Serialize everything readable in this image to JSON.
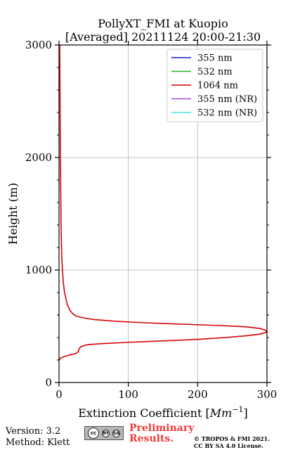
{
  "chart_data": {
    "type": "line",
    "title_line1": "PollyXT_FMI at Kuopio",
    "title_line2": "[Averaged] 20211124 20:00-21:30",
    "xlabel_text": "Extinction Coefficient [",
    "xlabel_unit": "Mm",
    "xlabel_exp": "−1",
    "xlabel_close": "]",
    "ylabel": "Height (m)",
    "xlim": [
      0,
      300
    ],
    "ylim": [
      0,
      3000
    ],
    "xticks": [
      0,
      100,
      200,
      300
    ],
    "yticks": [
      0,
      1000,
      2000,
      3000
    ],
    "grid": true,
    "legend_position": "top-right",
    "series": [
      {
        "name": "355 nm",
        "color": "#1a1ad6",
        "points": []
      },
      {
        "name": "532 nm",
        "color": "#22b422",
        "points": []
      },
      {
        "name": "1064 nm",
        "color": "#d40000",
        "points": [
          [
            0.5,
            200
          ],
          [
            2,
            215
          ],
          [
            5,
            225
          ],
          [
            10,
            235
          ],
          [
            18,
            248
          ],
          [
            25,
            260
          ],
          [
            28,
            275
          ],
          [
            29,
            300
          ],
          [
            32,
            320
          ],
          [
            40,
            335
          ],
          [
            60,
            345
          ],
          [
            100,
            357
          ],
          [
            150,
            370
          ],
          [
            200,
            383
          ],
          [
            240,
            400
          ],
          [
            270,
            415
          ],
          [
            290,
            430
          ],
          [
            300,
            448
          ],
          [
            298,
            465
          ],
          [
            290,
            480
          ],
          [
            270,
            495
          ],
          [
            230,
            507
          ],
          [
            170,
            520
          ],
          [
            120,
            532
          ],
          [
            80,
            545
          ],
          [
            50,
            560
          ],
          [
            35,
            575
          ],
          [
            25,
            590
          ],
          [
            20,
            610
          ],
          [
            16,
            640
          ],
          [
            12,
            690
          ],
          [
            8,
            800
          ],
          [
            6,
            900
          ],
          [
            4,
            1100
          ],
          [
            3,
            1400
          ],
          [
            2,
            2000
          ],
          [
            1.5,
            2500
          ],
          [
            1,
            3000
          ]
        ]
      },
      {
        "name": "355 nm (NR)",
        "color": "#a050e0",
        "points": []
      },
      {
        "name": "532 nm (NR)",
        "color": "#40e6e6",
        "points": []
      }
    ]
  },
  "footer": {
    "version": "Version: 3.2",
    "method": "Method: Klett",
    "license_badge": {
      "cc": "cc",
      "by": "BY",
      "sa": "SA"
    },
    "preliminary_line1": "Preliminary",
    "preliminary_line2": "Results.",
    "copyright_line1": "© TROPOS & FMI 2021.",
    "copyright_line2": "CC BY SA 4.0 License."
  }
}
